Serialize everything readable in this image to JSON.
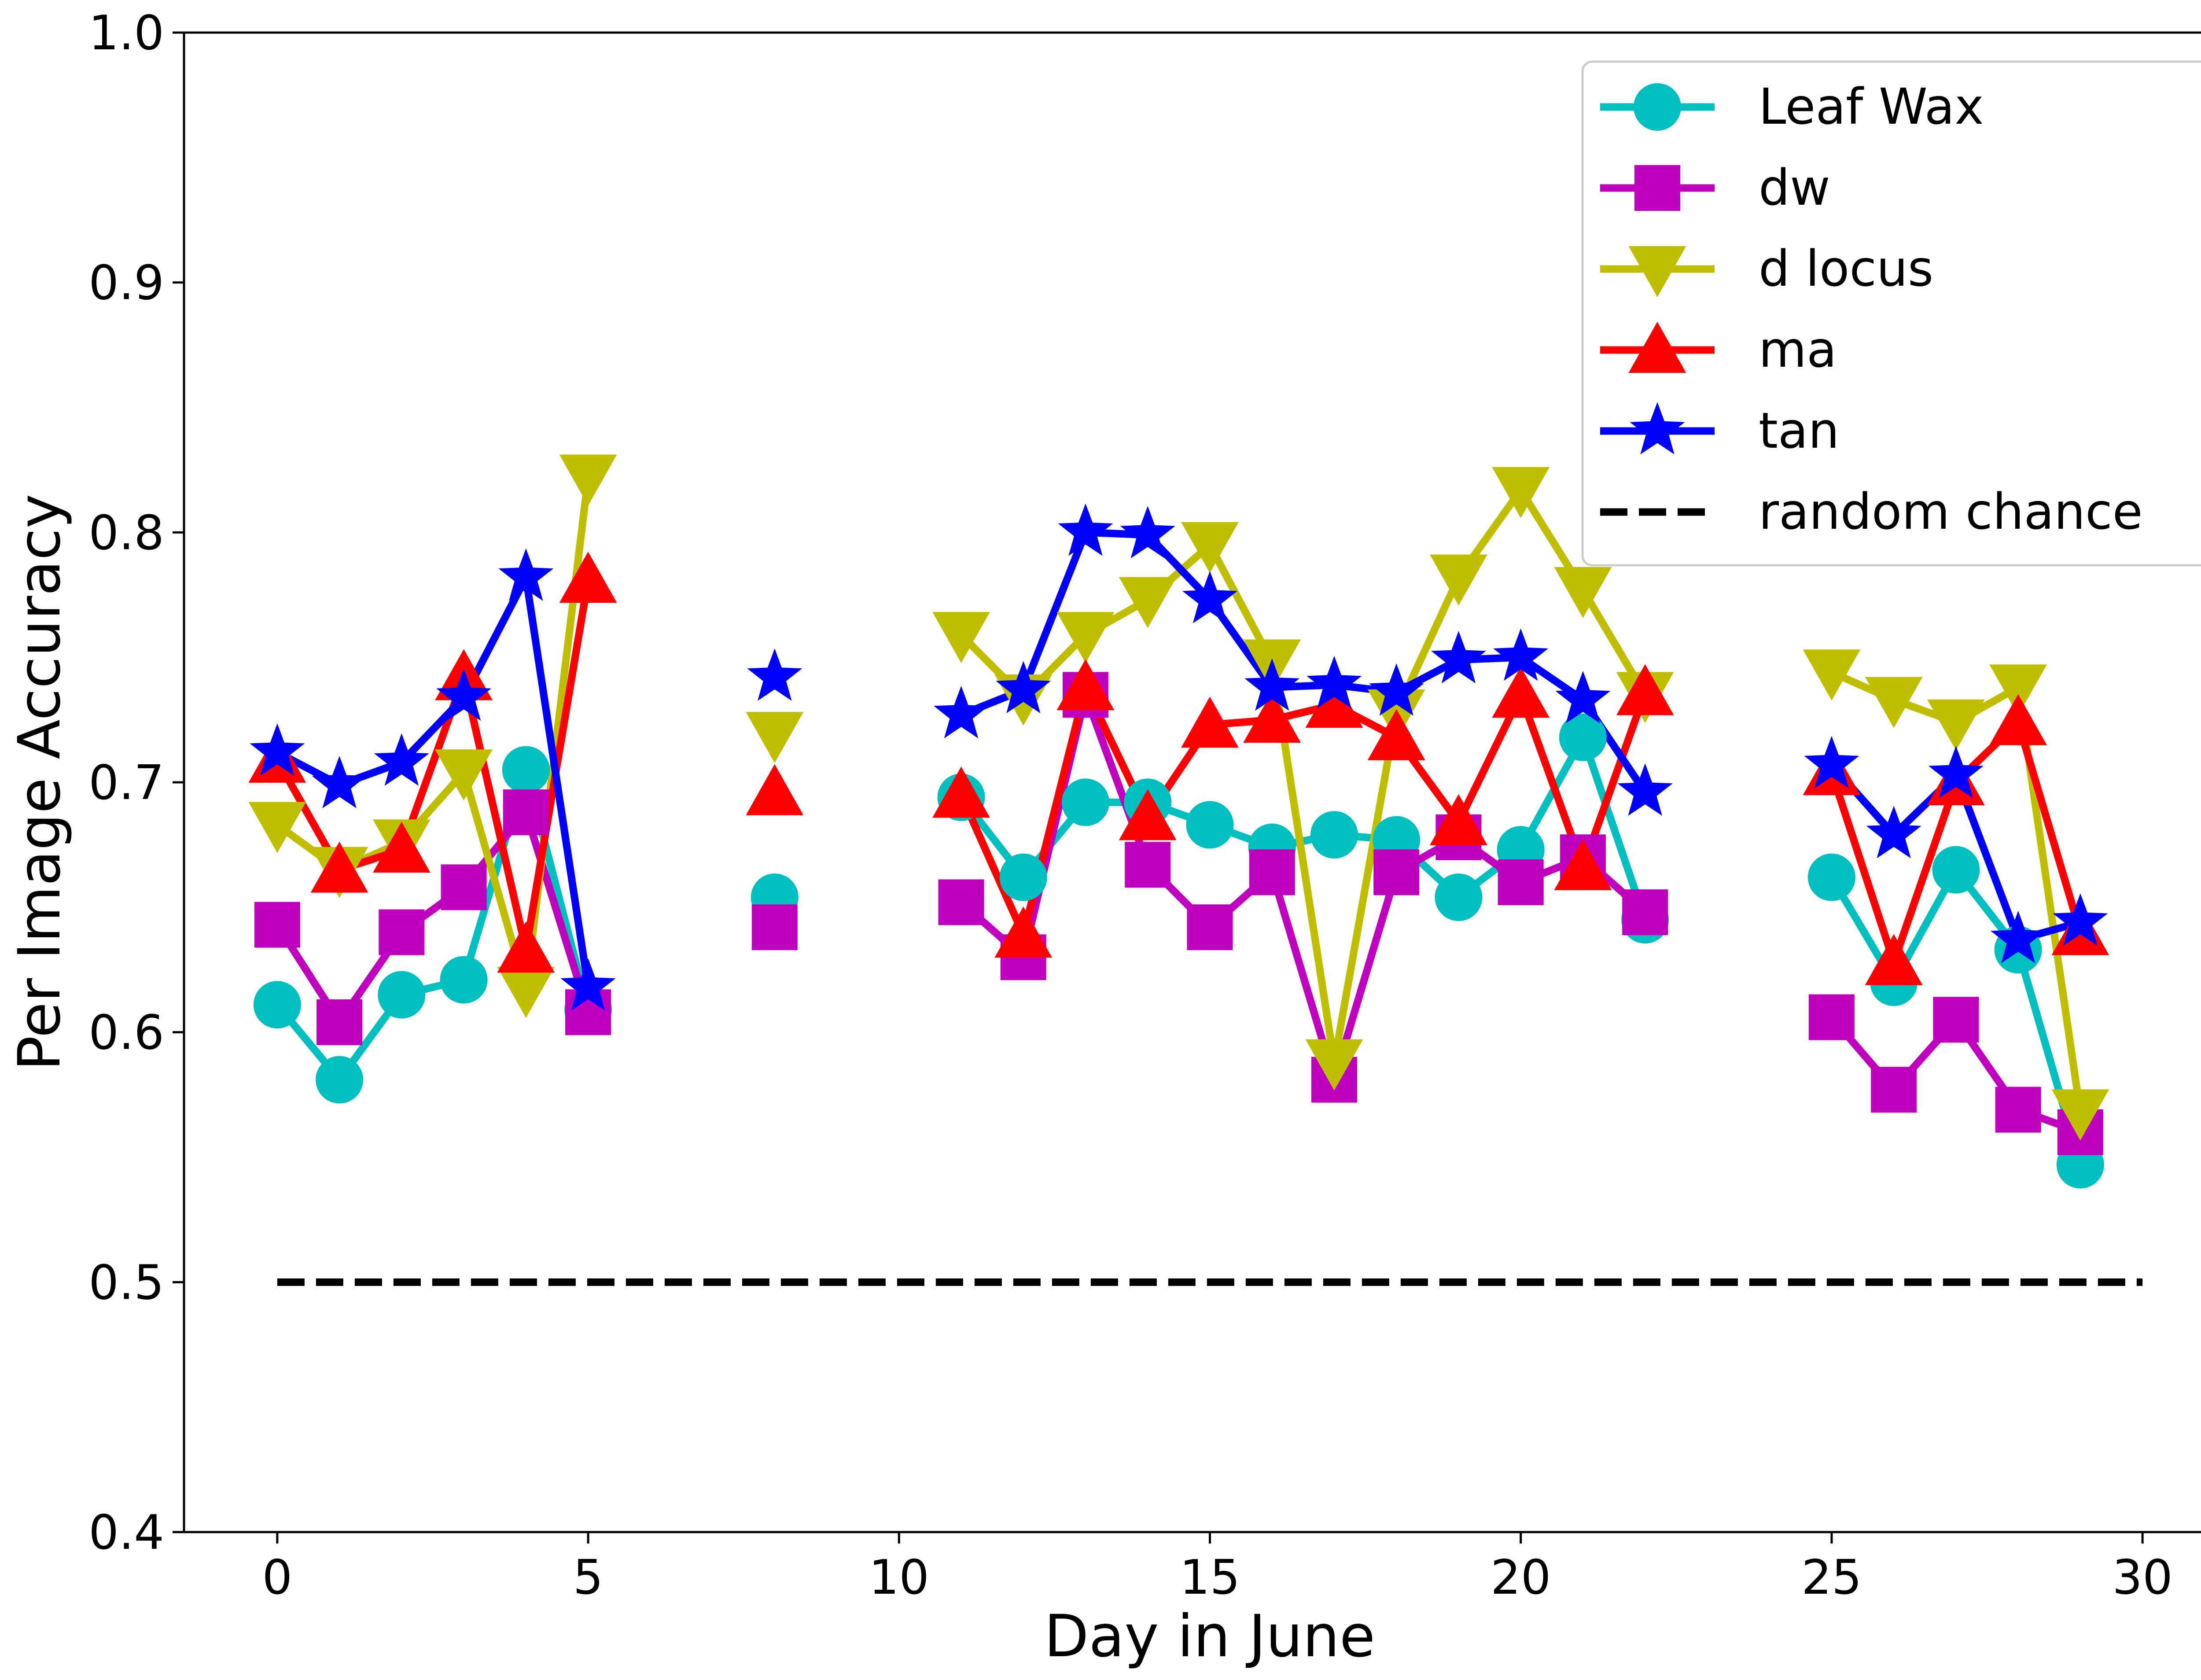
{
  "chart_data": {
    "type": "line",
    "title": "",
    "xlabel": "Day in June",
    "ylabel": "Per Image Accuracy",
    "xlim": [
      -1.5,
      31.5
    ],
    "ylim": [
      0.4,
      1.0
    ],
    "xticks": [
      0,
      5,
      10,
      15,
      20,
      25,
      30
    ],
    "xtick_labels": [
      "0",
      "5",
      "10",
      "15",
      "20",
      "25",
      "30"
    ],
    "yticks": [
      0.4,
      0.5,
      0.6,
      0.7,
      0.8,
      0.9,
      1.0
    ],
    "ytick_labels": [
      "0.4",
      "0.5",
      "0.6",
      "0.7",
      "0.8",
      "0.9",
      "1.0"
    ],
    "grid": false,
    "legend_position": "top-right",
    "x": [
      0,
      1,
      2,
      3,
      4,
      5,
      8,
      11,
      12,
      13,
      14,
      15,
      16,
      17,
      18,
      19,
      20,
      21,
      22,
      25,
      26,
      27,
      28,
      29
    ],
    "series": [
      {
        "name": "Leaf Wax",
        "color": "#00bfbf",
        "marker": "circle",
        "values": [
          0.611,
          0.581,
          0.615,
          0.621,
          0.705,
          0.609,
          0.654,
          0.694,
          0.662,
          0.692,
          0.692,
          0.683,
          0.674,
          0.679,
          0.677,
          0.654,
          0.673,
          0.718,
          0.645,
          0.662,
          0.62,
          0.665,
          0.633,
          0.547
        ]
      },
      {
        "name": "dw",
        "color": "#bf00bf",
        "marker": "square",
        "values": [
          0.643,
          0.604,
          0.64,
          0.658,
          0.688,
          0.608,
          0.642,
          0.652,
          0.63,
          0.735,
          0.667,
          0.642,
          0.664,
          0.581,
          0.664,
          0.678,
          0.66,
          0.67,
          0.648,
          0.606,
          0.577,
          0.605,
          0.569,
          0.56
        ]
      },
      {
        "name": "d locus",
        "color": "#bfbf00",
        "marker": "triangle-down",
        "values": [
          0.683,
          0.665,
          0.676,
          0.704,
          0.617,
          0.822,
          0.719,
          0.759,
          0.734,
          0.759,
          0.773,
          0.795,
          0.748,
          0.588,
          0.728,
          0.782,
          0.817,
          0.777,
          0.735,
          0.744,
          0.733,
          0.724,
          0.738,
          0.568
        ]
      },
      {
        "name": "ma",
        "color": "#ff0000",
        "marker": "triangle-up",
        "values": [
          0.709,
          0.665,
          0.673,
          0.742,
          0.633,
          0.781,
          0.696,
          0.695,
          0.639,
          0.738,
          0.686,
          0.723,
          0.725,
          0.731,
          0.718,
          0.684,
          0.735,
          0.666,
          0.736,
          0.704,
          0.628,
          0.7,
          0.724,
          0.64
        ]
      },
      {
        "name": "tan",
        "color": "#0000ff",
        "marker": "star",
        "values": [
          0.712,
          0.699,
          0.708,
          0.734,
          0.782,
          0.618,
          0.742,
          0.727,
          0.737,
          0.8,
          0.799,
          0.773,
          0.738,
          0.739,
          0.736,
          0.749,
          0.75,
          0.733,
          0.696,
          0.707,
          0.679,
          0.703,
          0.637,
          0.644
        ]
      }
    ],
    "gaps_after_x": [
      5,
      8,
      22
    ],
    "reference_lines": [
      {
        "name": "random chance",
        "y": 0.5,
        "x_range": [
          0,
          30
        ],
        "color": "#000000",
        "style": "dashed"
      }
    ]
  }
}
